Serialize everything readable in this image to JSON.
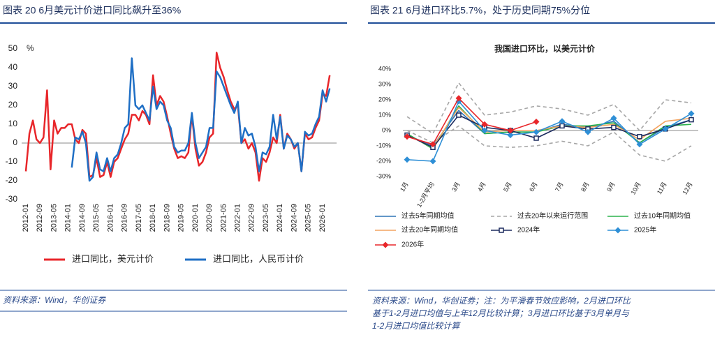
{
  "chart_data": [
    {
      "type": "line",
      "title": "图表 20 6月美元计价进口同比飙升至36%",
      "unit": "%",
      "source": "资料来源：Wind，华创证券",
      "categories": [
        "2012-01",
        null,
        null,
        null,
        "2012-09",
        null,
        null,
        null,
        "2013-05",
        null,
        null,
        null,
        "2014-01",
        null,
        null,
        null,
        "2014-09",
        null,
        null,
        null,
        "2015-05",
        null,
        null,
        null,
        "2016-01",
        null,
        null,
        null,
        "2016-09",
        null,
        null,
        null,
        "2017-05",
        null,
        null,
        null,
        "2018-01",
        null,
        null,
        null,
        "2018-09",
        null,
        null,
        null,
        "2019-05",
        null,
        null,
        null,
        "2020-01",
        null,
        null,
        null,
        "2020-09",
        null,
        null,
        null,
        "2021-05",
        null,
        null,
        null,
        "2022-01",
        null,
        null,
        null,
        "2022-09",
        null,
        null,
        null,
        "2023-05",
        null,
        null,
        null,
        "2024-01",
        null,
        null,
        null,
        "2024-09",
        null,
        null,
        null,
        "2025-05",
        null,
        null,
        null,
        "2026-01",
        null,
        null
      ],
      "series": [
        {
          "name": "进口同比，美元计价",
          "color": "#e8262a",
          "values": [
            -15,
            5,
            12,
            2,
            0,
            3,
            28,
            -14,
            12,
            5,
            8,
            8,
            10,
            10,
            2,
            0,
            7,
            5,
            -18,
            -17,
            -8,
            -18,
            -17,
            -10,
            -18,
            -10,
            -8,
            -3,
            2,
            5,
            15,
            15,
            12,
            17,
            15,
            10,
            36,
            20,
            25,
            22,
            14,
            5,
            -3,
            -8,
            -7,
            -8,
            -5,
            15,
            -3,
            -12,
            -10,
            -5,
            3,
            5,
            48,
            40,
            35,
            28,
            22,
            18,
            20,
            0,
            2,
            -3,
            0,
            -5,
            -20,
            -8,
            -10,
            -5,
            3,
            0,
            15,
            -3,
            5,
            2,
            -3,
            0,
            -15,
            5,
            2,
            3,
            8,
            12,
            26,
            25,
            36
          ]
        },
        {
          "name": "进口同比，人民币计价",
          "color": "#1f6fc5",
          "values": [
            null,
            null,
            null,
            null,
            null,
            null,
            null,
            null,
            null,
            null,
            null,
            null,
            null,
            -13,
            3,
            2,
            6,
            0,
            -20,
            -18,
            -5,
            -14,
            -15,
            -8,
            -15,
            -8,
            -6,
            0,
            8,
            10,
            45,
            20,
            18,
            20,
            16,
            12,
            30,
            18,
            22,
            20,
            12,
            8,
            -2,
            -5,
            -4,
            -4,
            0,
            16,
            0,
            -8,
            -5,
            -2,
            8,
            8,
            38,
            35,
            30,
            25,
            20,
            16,
            22,
            0,
            8,
            4,
            5,
            -2,
            -15,
            -5,
            -6,
            -2,
            15,
            2,
            14,
            -3,
            4,
            2,
            -2,
            0,
            -15,
            6,
            4,
            5,
            10,
            14,
            28,
            22,
            29
          ]
        }
      ],
      "ylim": [
        -30,
        50
      ],
      "yticks": [
        -30,
        -20,
        -10,
        0,
        10,
        20,
        30,
        40,
        50
      ],
      "grid": false
    },
    {
      "type": "line",
      "title": "图表 21 6月进口环比5.7%，处于历史同期75%分位",
      "subtitle": "我国进口环比，以美元计价",
      "source": [
        "资料来源：Wind，华创证券；注：为平滑春节效应影响，2月进口环比",
        "基于1-2月进口均值与上年12月比较计算；3月进口环比基于3月单月与",
        "1-2月进口均值比较计算"
      ],
      "categories": [
        "1月",
        "1-2月平均",
        "3月",
        "4月",
        "5月",
        "6月",
        "7月",
        "8月",
        "9月",
        "10月",
        "11月",
        "12月"
      ],
      "series": [
        {
          "name": "过去5年同期均值",
          "color": "#2e75b6",
          "values": [
            -3,
            -10,
            13,
            -2,
            -1,
            -1,
            4,
            2,
            6,
            -8,
            2,
            7
          ]
        },
        {
          "name": "过去20年以来运行范围",
          "color": "#a6a6a6",
          "dashed": true,
          "high": [
            9,
            -2,
            31,
            10,
            12,
            16,
            14,
            10,
            17,
            0,
            20,
            18
          ],
          "low": [
            0,
            -8,
            3,
            -10,
            -11,
            -10,
            -7,
            -10,
            -1,
            -16,
            -20,
            -10
          ]
        },
        {
          "name": "过去10年同期均值",
          "color": "#2bb24c",
          "values": [
            -2,
            -12,
            16,
            -2,
            -1,
            -1,
            3,
            3,
            5,
            -8,
            3,
            4
          ]
        },
        {
          "name": "过去20年同期均值",
          "color": "#f4a460",
          "values": [
            -3,
            -11,
            15,
            -1,
            0,
            0,
            3,
            2,
            4,
            -6,
            6,
            8
          ]
        },
        {
          "name": "2024年",
          "color": "#1b2a5e",
          "marker": "square",
          "values": [
            -3,
            -11,
            10,
            2,
            0,
            -5,
            3,
            1,
            2,
            -4,
            1,
            7
          ]
        },
        {
          "name": "2025年",
          "color": "#2e8fd6",
          "marker": "diamond",
          "values": [
            -19,
            -20,
            19,
            0,
            -3,
            -1,
            6,
            -1,
            8,
            -9,
            1,
            11
          ]
        },
        {
          "name": "2026年",
          "color": "#e8262a",
          "marker": "diamond",
          "values": [
            -4,
            -9,
            21,
            4,
            0,
            5.7,
            null,
            null,
            null,
            null,
            null,
            null
          ]
        }
      ],
      "ylim": [
        -30,
        40
      ],
      "yticks": [
        {
          "value": -30,
          "label": "-30%"
        },
        {
          "value": -20,
          "label": "-20%"
        },
        {
          "value": -10,
          "label": "-10%"
        },
        {
          "value": 0,
          "label": "0%"
        },
        {
          "value": 10,
          "label": "10%"
        },
        {
          "value": 20,
          "label": "20%"
        },
        {
          "value": 30,
          "label": "30%"
        },
        {
          "value": 40,
          "label": "40%"
        }
      ],
      "grid": false
    }
  ]
}
